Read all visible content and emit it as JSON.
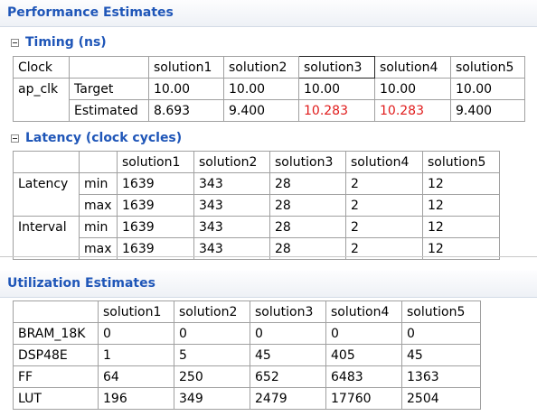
{
  "performance": {
    "title": "Performance Estimates",
    "timing": {
      "title": "Timing (ns)",
      "header": [
        "Clock",
        "",
        "solution1",
        "solution2",
        "solution3",
        "solution4",
        "solution5"
      ],
      "clock_name": "ap_clk",
      "rows": [
        {
          "label": "Target",
          "values": [
            "10.00",
            "10.00",
            "10.00",
            "10.00",
            "10.00"
          ]
        },
        {
          "label": "Estimated",
          "values": [
            "8.693",
            "9.400",
            "10.283",
            "10.283",
            "9.400"
          ]
        }
      ],
      "violation_color": "#e01b1b"
    },
    "latency": {
      "title": "Latency (clock cycles)",
      "header": [
        "",
        "",
        "solution1",
        "solution2",
        "solution3",
        "solution4",
        "solution5"
      ],
      "groups": [
        {
          "name": "Latency",
          "rows": [
            {
              "label": "min",
              "values": [
                "1639",
                "343",
                "28",
                "2",
                "12"
              ]
            },
            {
              "label": "max",
              "values": [
                "1639",
                "343",
                "28",
                "2",
                "12"
              ]
            }
          ]
        },
        {
          "name": "Interval",
          "rows": [
            {
              "label": "min",
              "values": [
                "1639",
                "343",
                "28",
                "2",
                "12"
              ]
            },
            {
              "label": "max",
              "values": [
                "1639",
                "343",
                "28",
                "2",
                "12"
              ]
            }
          ]
        }
      ]
    }
  },
  "utilization": {
    "title": "Utilization Estimates",
    "header": [
      "",
      "solution1",
      "solution2",
      "solution3",
      "solution4",
      "solution5"
    ],
    "rows": [
      {
        "label": "BRAM_18K",
        "values": [
          "0",
          "0",
          "0",
          "0",
          "0"
        ]
      },
      {
        "label": "DSP48E",
        "values": [
          "1",
          "5",
          "45",
          "405",
          "45"
        ]
      },
      {
        "label": "FF",
        "values": [
          "64",
          "250",
          "652",
          "6483",
          "1363"
        ]
      },
      {
        "label": "LUT",
        "values": [
          "196",
          "349",
          "2479",
          "17760",
          "2504"
        ]
      }
    ]
  },
  "colors": {
    "accent": "#1f56b8",
    "header_bg": "#eef1f6"
  }
}
